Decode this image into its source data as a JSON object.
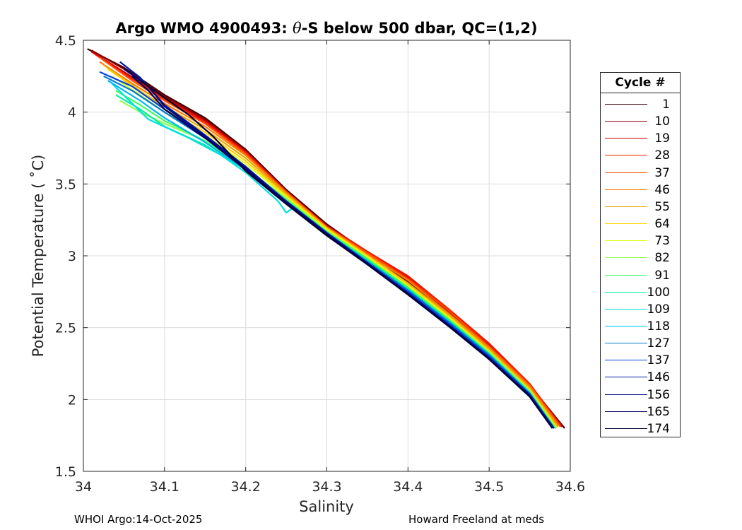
{
  "chart_data": {
    "type": "line",
    "title_main": "Argo WMO 4900493: ",
    "title_theta": "θ",
    "title_rest": "-S below 500 dbar,  QC=(1,2)",
    "xlabel": "Salinity",
    "ylabel": "Potential Temperature ( ˚C)",
    "xlim": [
      34,
      34.6
    ],
    "ylim": [
      1.5,
      4.5
    ],
    "x_ticks": [
      "34",
      "34.1",
      "34.2",
      "34.3",
      "34.4",
      "34.5",
      "34.6"
    ],
    "y_ticks": [
      "1.5",
      "2",
      "2.5",
      "3",
      "3.5",
      "4",
      "4.5"
    ],
    "grid": true,
    "legend_position": "right, outside plot",
    "legend_title": "Cycle #",
    "series": [
      {
        "name": "1",
        "color": "#3a0000",
        "values": [
          [
            34.005,
            4.44
          ],
          [
            34.05,
            4.31
          ],
          [
            34.1,
            4.12
          ],
          [
            34.15,
            3.96
          ],
          [
            34.2,
            3.74
          ],
          [
            34.25,
            3.46
          ],
          [
            34.3,
            3.22
          ],
          [
            34.35,
            3.02
          ],
          [
            34.4,
            2.82
          ],
          [
            34.45,
            2.6
          ],
          [
            34.5,
            2.38
          ],
          [
            34.55,
            2.1
          ],
          [
            34.593,
            1.8
          ]
        ]
      },
      {
        "name": "10",
        "color": "#8c0000",
        "values": [
          [
            34.01,
            4.43
          ],
          [
            34.05,
            4.3
          ],
          [
            34.1,
            4.11
          ],
          [
            34.15,
            3.95
          ],
          [
            34.2,
            3.73
          ],
          [
            34.25,
            3.45
          ],
          [
            34.3,
            3.21
          ],
          [
            34.35,
            3.02
          ],
          [
            34.4,
            2.83
          ],
          [
            34.45,
            2.61
          ],
          [
            34.5,
            2.37
          ],
          [
            34.55,
            2.09
          ],
          [
            34.59,
            1.82
          ]
        ]
      },
      {
        "name": "19",
        "color": "#cc0000",
        "values": [
          [
            34.01,
            4.42
          ],
          [
            34.05,
            4.28
          ],
          [
            34.1,
            4.1
          ],
          [
            34.15,
            3.94
          ],
          [
            34.2,
            3.73
          ],
          [
            34.25,
            3.45
          ],
          [
            34.3,
            3.21
          ],
          [
            34.35,
            3.03
          ],
          [
            34.4,
            2.85
          ],
          [
            34.45,
            2.62
          ],
          [
            34.5,
            2.38
          ],
          [
            34.55,
            2.1
          ],
          [
            34.59,
            1.81
          ]
        ]
      },
      {
        "name": "28",
        "color": "#ee1c00",
        "values": [
          [
            34.015,
            4.4
          ],
          [
            34.05,
            4.27
          ],
          [
            34.1,
            4.09
          ],
          [
            34.15,
            3.93
          ],
          [
            34.2,
            3.72
          ],
          [
            34.25,
            3.45
          ],
          [
            34.3,
            3.2
          ],
          [
            34.35,
            3.03
          ],
          [
            34.4,
            2.86
          ],
          [
            34.45,
            2.63
          ],
          [
            34.5,
            2.39
          ],
          [
            34.55,
            2.11
          ],
          [
            34.588,
            1.82
          ]
        ]
      },
      {
        "name": "37",
        "color": "#ff4a00",
        "values": [
          [
            34.02,
            4.38
          ],
          [
            34.06,
            4.22
          ],
          [
            34.1,
            4.08
          ],
          [
            34.15,
            3.92
          ],
          [
            34.2,
            3.71
          ],
          [
            34.25,
            3.44
          ],
          [
            34.3,
            3.2
          ],
          [
            34.35,
            3.02
          ],
          [
            34.4,
            2.84
          ],
          [
            34.45,
            2.62
          ],
          [
            34.5,
            2.37
          ],
          [
            34.55,
            2.1
          ],
          [
            34.588,
            1.81
          ]
        ]
      },
      {
        "name": "46",
        "color": "#ff7a00",
        "values": [
          [
            34.02,
            4.35
          ],
          [
            34.06,
            4.2
          ],
          [
            34.1,
            4.06
          ],
          [
            34.15,
            3.9
          ],
          [
            34.2,
            3.7
          ],
          [
            34.25,
            3.44
          ],
          [
            34.3,
            3.2
          ],
          [
            34.35,
            3.01
          ],
          [
            34.4,
            2.83
          ],
          [
            34.45,
            2.6
          ],
          [
            34.5,
            2.36
          ],
          [
            34.55,
            2.09
          ],
          [
            34.585,
            1.82
          ]
        ]
      },
      {
        "name": "55",
        "color": "#e6a800",
        "values": [
          [
            34.025,
            4.33
          ],
          [
            34.06,
            4.18
          ],
          [
            34.1,
            4.04
          ],
          [
            34.15,
            3.88
          ],
          [
            34.2,
            3.68
          ],
          [
            34.25,
            3.43
          ],
          [
            34.3,
            3.19
          ],
          [
            34.35,
            3.0
          ],
          [
            34.4,
            2.81
          ],
          [
            34.45,
            2.59
          ],
          [
            34.5,
            2.35
          ],
          [
            34.55,
            2.08
          ],
          [
            34.585,
            1.81
          ]
        ]
      },
      {
        "name": "64",
        "color": "#ffd200",
        "values": [
          [
            34.03,
            4.3
          ],
          [
            34.07,
            4.15
          ],
          [
            34.1,
            4.02
          ],
          [
            34.15,
            3.86
          ],
          [
            34.2,
            3.66
          ],
          [
            34.25,
            3.42
          ],
          [
            34.3,
            3.19
          ],
          [
            34.35,
            3.0
          ],
          [
            34.4,
            2.8
          ],
          [
            34.45,
            2.58
          ],
          [
            34.5,
            2.34
          ],
          [
            34.55,
            2.07
          ],
          [
            34.583,
            1.81
          ]
        ]
      },
      {
        "name": "73",
        "color": "#e0ff20",
        "values": [
          [
            34.035,
            4.25
          ],
          [
            34.07,
            4.12
          ],
          [
            34.1,
            4.0
          ],
          [
            34.15,
            3.84
          ],
          [
            34.2,
            3.64
          ],
          [
            34.25,
            3.41
          ],
          [
            34.3,
            3.18
          ],
          [
            34.35,
            2.99
          ],
          [
            34.4,
            2.79
          ],
          [
            34.45,
            2.57
          ],
          [
            34.5,
            2.33
          ],
          [
            34.55,
            2.06
          ],
          [
            34.583,
            1.8
          ]
        ]
      },
      {
        "name": "82",
        "color": "#90ff50",
        "values": [
          [
            34.045,
            4.08
          ],
          [
            34.07,
            4.0
          ],
          [
            34.1,
            3.92
          ],
          [
            34.15,
            3.8
          ],
          [
            34.2,
            3.61
          ],
          [
            34.25,
            3.4
          ],
          [
            34.3,
            3.17
          ],
          [
            34.35,
            2.98
          ],
          [
            34.4,
            2.78
          ],
          [
            34.45,
            2.56
          ],
          [
            34.5,
            2.33
          ],
          [
            34.55,
            2.06
          ],
          [
            34.582,
            1.8
          ]
        ]
      },
      {
        "name": "91",
        "color": "#40ff60",
        "values": [
          [
            34.04,
            4.15
          ],
          [
            34.07,
            4.05
          ],
          [
            34.1,
            3.94
          ],
          [
            34.15,
            3.8
          ],
          [
            34.2,
            3.61
          ],
          [
            34.25,
            3.39
          ],
          [
            34.3,
            3.17
          ],
          [
            34.35,
            2.98
          ],
          [
            34.4,
            2.78
          ],
          [
            34.45,
            2.56
          ],
          [
            34.5,
            2.32
          ],
          [
            34.55,
            2.05
          ],
          [
            34.582,
            1.8
          ]
        ]
      },
      {
        "name": "100",
        "color": "#00f0a0",
        "values": [
          [
            34.04,
            4.12
          ],
          [
            34.07,
            4.02
          ],
          [
            34.1,
            3.9
          ],
          [
            34.15,
            3.77
          ],
          [
            34.2,
            3.6
          ],
          [
            34.25,
            3.38
          ],
          [
            34.3,
            3.16
          ],
          [
            34.35,
            2.97
          ],
          [
            34.4,
            2.77
          ],
          [
            34.45,
            2.55
          ],
          [
            34.5,
            2.32
          ],
          [
            34.55,
            2.05
          ],
          [
            34.58,
            1.8
          ]
        ]
      },
      {
        "name": "109",
        "color": "#00e0e0",
        "values": [
          [
            34.035,
            4.2
          ],
          [
            34.08,
            3.95
          ],
          [
            34.13,
            3.82
          ],
          [
            34.17,
            3.7
          ],
          [
            34.2,
            3.58
          ],
          [
            34.24,
            3.38
          ],
          [
            34.25,
            3.3
          ],
          [
            34.26,
            3.34
          ],
          [
            34.3,
            3.15
          ],
          [
            34.35,
            2.96
          ],
          [
            34.4,
            2.76
          ],
          [
            34.45,
            2.54
          ],
          [
            34.5,
            2.31
          ],
          [
            34.55,
            2.04
          ],
          [
            34.58,
            1.8
          ]
        ]
      },
      {
        "name": "118",
        "color": "#00b8f0",
        "values": [
          [
            34.03,
            4.22
          ],
          [
            34.07,
            4.08
          ],
          [
            34.1,
            3.96
          ],
          [
            34.15,
            3.79
          ],
          [
            34.2,
            3.6
          ],
          [
            34.25,
            3.38
          ],
          [
            34.3,
            3.16
          ],
          [
            34.35,
            2.96
          ],
          [
            34.4,
            2.76
          ],
          [
            34.45,
            2.54
          ],
          [
            34.5,
            2.31
          ],
          [
            34.55,
            2.04
          ],
          [
            34.58,
            1.8
          ]
        ]
      },
      {
        "name": "127",
        "color": "#007ad0",
        "values": [
          [
            34.025,
            4.25
          ],
          [
            34.06,
            4.15
          ],
          [
            34.1,
            4.0
          ],
          [
            34.15,
            3.82
          ],
          [
            34.2,
            3.61
          ],
          [
            34.25,
            3.38
          ],
          [
            34.3,
            3.16
          ],
          [
            34.35,
            2.96
          ],
          [
            34.4,
            2.76
          ],
          [
            34.45,
            2.54
          ],
          [
            34.5,
            2.31
          ],
          [
            34.55,
            2.04
          ],
          [
            34.58,
            1.8
          ]
        ]
      },
      {
        "name": "137",
        "color": "#0044dd",
        "values": [
          [
            34.02,
            4.28
          ],
          [
            34.06,
            4.18
          ],
          [
            34.1,
            4.02
          ],
          [
            34.15,
            3.83
          ],
          [
            34.2,
            3.61
          ],
          [
            34.25,
            3.38
          ],
          [
            34.3,
            3.16
          ],
          [
            34.35,
            2.95
          ],
          [
            34.4,
            2.75
          ],
          [
            34.45,
            2.53
          ],
          [
            34.5,
            2.3
          ],
          [
            34.55,
            2.04
          ],
          [
            34.58,
            1.8
          ]
        ]
      },
      {
        "name": "146",
        "color": "#0018a8",
        "values": [
          [
            34.045,
            4.35
          ],
          [
            34.07,
            4.24
          ],
          [
            34.1,
            4.05
          ],
          [
            34.15,
            3.84
          ],
          [
            34.2,
            3.62
          ],
          [
            34.25,
            3.38
          ],
          [
            34.3,
            3.16
          ],
          [
            34.35,
            2.95
          ],
          [
            34.4,
            2.74
          ],
          [
            34.45,
            2.52
          ],
          [
            34.5,
            2.29
          ],
          [
            34.55,
            2.03
          ],
          [
            34.58,
            1.8
          ]
        ]
      },
      {
        "name": "156",
        "color": "#000880",
        "values": [
          [
            34.05,
            4.3
          ],
          [
            34.08,
            4.18
          ],
          [
            34.1,
            4.04
          ],
          [
            34.15,
            3.83
          ],
          [
            34.2,
            3.61
          ],
          [
            34.25,
            3.37
          ],
          [
            34.3,
            3.15
          ],
          [
            34.35,
            2.95
          ],
          [
            34.4,
            2.74
          ],
          [
            34.45,
            2.52
          ],
          [
            34.5,
            2.29
          ],
          [
            34.55,
            2.03
          ],
          [
            34.578,
            1.8
          ]
        ]
      },
      {
        "name": "165",
        "color": "#000060",
        "values": [
          [
            34.06,
            4.25
          ],
          [
            34.08,
            4.15
          ],
          [
            34.1,
            4.02
          ],
          [
            34.15,
            3.82
          ],
          [
            34.2,
            3.6
          ],
          [
            34.25,
            3.37
          ],
          [
            34.3,
            3.15
          ],
          [
            34.35,
            2.94
          ],
          [
            34.4,
            2.73
          ],
          [
            34.45,
            2.51
          ],
          [
            34.5,
            2.28
          ],
          [
            34.55,
            2.02
          ],
          [
            34.578,
            1.8
          ]
        ]
      },
      {
        "name": "174",
        "color": "#000038",
        "values": [
          [
            34.07,
            4.22
          ],
          [
            34.1,
            4.1
          ],
          [
            34.13,
            3.98
          ],
          [
            34.16,
            3.83
          ],
          [
            34.2,
            3.59
          ],
          [
            34.25,
            3.36
          ],
          [
            34.3,
            3.14
          ],
          [
            34.35,
            2.94
          ],
          [
            34.4,
            2.73
          ],
          [
            34.45,
            2.51
          ],
          [
            34.5,
            2.28
          ],
          [
            34.55,
            2.02
          ],
          [
            34.578,
            1.8
          ]
        ]
      }
    ]
  },
  "footer": {
    "left": "WHOI Argo:14-Oct-2025",
    "right": "Howard Freeland at meds"
  }
}
